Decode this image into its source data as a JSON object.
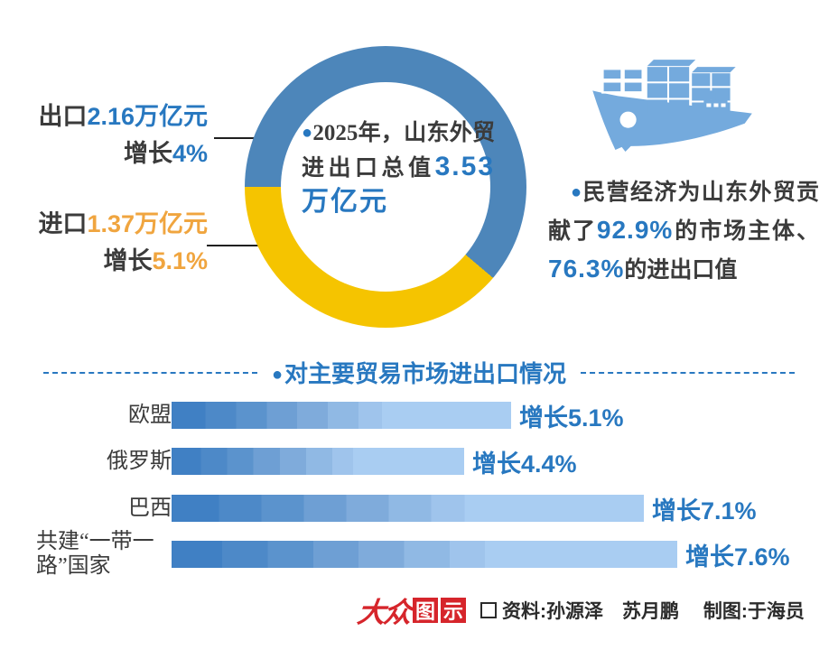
{
  "colors": {
    "accent_blue": "#2878c0",
    "ring_blue": "#4d86ba",
    "ring_yellow": "#f5c400",
    "orange_text": "#f0a53f",
    "ship_blue": "#74aadd",
    "logo_red": "#d6252b",
    "dark_text": "#3b3b3b"
  },
  "donut": {
    "center_bullet": "●",
    "center_text_prefix": "2025年，山东外贸进出口总值",
    "center_value": "3.53万亿元",
    "export_label": "出口",
    "export_value": "2.16万亿元",
    "export_growth_label": "增长",
    "export_growth_value": "4%",
    "import_label": "进口",
    "import_value": "1.37万亿元",
    "import_growth_label": "增长",
    "import_growth_value": "5.1%"
  },
  "note": {
    "bullet": "●",
    "part1": "民营经济为山东外贸贡献了",
    "value1": "92.9%",
    "part2": "的市场主体、",
    "value2": "76.3%",
    "part3": "的进出口值"
  },
  "section": {
    "bullet": "●",
    "title": "对主要贸易市场进出口情况"
  },
  "icons": {
    "ship": "cargo-ship-icon",
    "credit_box": "□"
  },
  "chart_data": [
    {
      "type": "pie",
      "title": "2025年，山东外贸进出口总值3.53万亿元",
      "unit": "万亿元",
      "total": 3.53,
      "series": [
        {
          "name": "出口",
          "value": 2.16,
          "growth_pct": 4.0,
          "color": "#4d86ba"
        },
        {
          "name": "进口",
          "value": 1.37,
          "growth_pct": 5.1,
          "color": "#f5c400"
        }
      ],
      "donut_hole": true,
      "start_angle_deg": 270
    },
    {
      "type": "bar",
      "title": "对主要贸易市场进出口情况",
      "orientation": "horizontal",
      "categories": [
        "欧盟",
        "俄罗斯",
        "巴西",
        "共建“一带一路”国家"
      ],
      "values": [
        5.1,
        4.4,
        7.1,
        7.6
      ],
      "value_labels": [
        "增长5.1%",
        "增长4.4%",
        "增长7.1%",
        "增长7.6%"
      ],
      "unit": "增长%",
      "xlim": [
        0,
        8.5
      ],
      "grid": false,
      "legend": false
    }
  ],
  "footer": {
    "logo_part1": "大众",
    "logo_part2": "图",
    "logo_part3": "示",
    "credits": "资料:孙源泽　苏月鹏　 制图:于海员"
  }
}
